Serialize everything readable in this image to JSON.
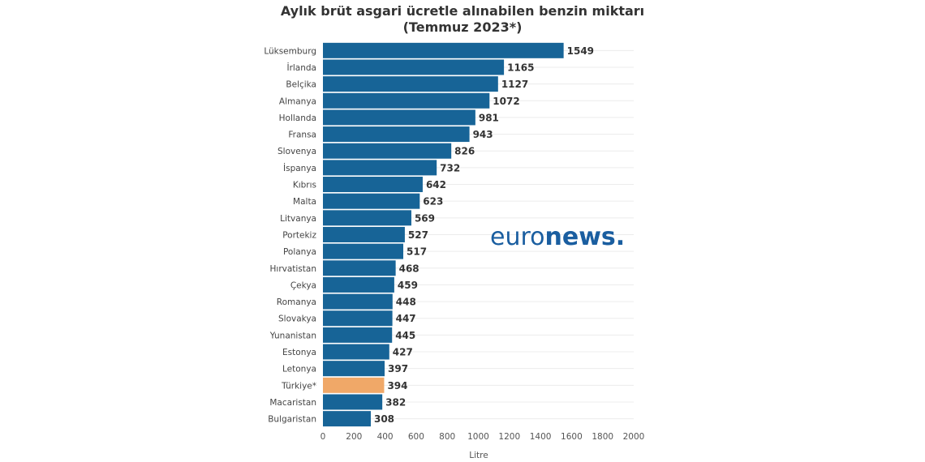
{
  "chart_data": {
    "type": "bar",
    "orientation": "horizontal",
    "title": "Aylık brüt asgari ücretle alınabilen benzin miktarı",
    "subtitle": "(Temmuz 2023*)",
    "xlabel": "Litre",
    "ylabel": "",
    "xlim": [
      0,
      2000
    ],
    "xticks": [
      0,
      200,
      400,
      600,
      800,
      1000,
      1200,
      1400,
      1600,
      1800,
      2000
    ],
    "grid": "horizontal",
    "categories": [
      "Lüksemburg",
      "İrlanda",
      "Belçika",
      "Almanya",
      "Hollanda",
      "Fransa",
      "Slovenya",
      "İspanya",
      "Kıbrıs",
      "Malta",
      "Litvanya",
      "Portekiz",
      "Polanya",
      "Hırvatistan",
      "Çekya",
      "Romanya",
      "Slovakya",
      "Yunanistan",
      "Estonya",
      "Letonya",
      "Türkiye*",
      "Macaristan",
      "Bulgaristan"
    ],
    "values": [
      1549,
      1165,
      1127,
      1072,
      981,
      943,
      826,
      732,
      642,
      623,
      569,
      527,
      517,
      468,
      459,
      448,
      447,
      445,
      427,
      397,
      394,
      382,
      308
    ],
    "colors": {
      "default": "#176497",
      "highlight": "#f0a868"
    },
    "highlight_category": "Türkiye*"
  },
  "logo": {
    "text_light": "euro",
    "text_bold": "news",
    "dot": ".",
    "color": "#1a5ea0"
  }
}
